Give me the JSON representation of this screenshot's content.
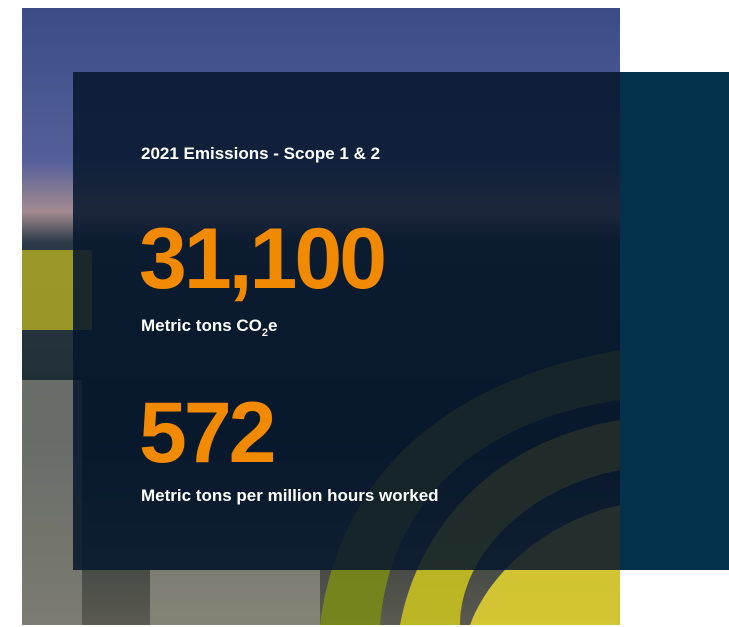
{
  "title": "2021 Emissions - Scope 1 & 2",
  "metrics": [
    {
      "value": "31,100",
      "label": [
        "Metric tons CO",
        "2",
        "e"
      ]
    },
    {
      "value": "572",
      "label": [
        "Metric tons per million hours worked"
      ]
    }
  ]
}
